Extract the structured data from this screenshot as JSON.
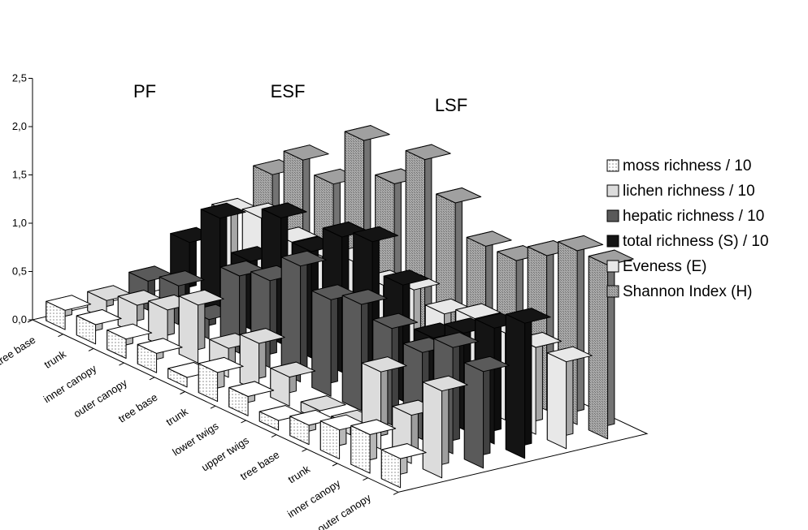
{
  "chart_data": {
    "type": "bar",
    "subtype": "3d-grouped-bar",
    "title": "",
    "xlabel": "",
    "ylabel": "",
    "ylim": [
      0,
      2.5
    ],
    "ytick_labels": [
      "0,0",
      "0,5",
      "1,0",
      "1,5",
      "2,0",
      "2,5"
    ],
    "yticks": [
      0,
      0.5,
      1.0,
      1.5,
      2.0,
      2.5
    ],
    "grid": false,
    "legend_position": "right",
    "groups": [
      {
        "label": "PF",
        "categories": [
          "tree base",
          "trunk",
          "inner canopy",
          "outer canopy"
        ]
      },
      {
        "label": "ESF",
        "categories": [
          "tree base",
          "trunk",
          "lower twigs",
          "upper twigs"
        ]
      },
      {
        "label": "LSF",
        "categories": [
          "tree base",
          "trunk",
          "inner canopy",
          "outer canopy"
        ]
      }
    ],
    "categories": [
      "tree base",
      "trunk",
      "inner canopy",
      "outer canopy",
      "tree base",
      "trunk",
      "lower twigs",
      "upper twigs",
      "tree base",
      "trunk",
      "inner canopy",
      "outer canopy"
    ],
    "series": [
      {
        "name": "moss richness / 10",
        "color": "#ffffff",
        "pattern": "dots",
        "values": [
          0.2,
          0.2,
          0.2,
          0.2,
          0.1,
          0.3,
          0.2,
          0.1,
          0.2,
          0.3,
          0.4,
          0.3
        ]
      },
      {
        "name": "lichen richness / 10",
        "color": "#dcdcdc",
        "pattern": "none",
        "values": [
          0.2,
          0.3,
          0.4,
          0.6,
          0.3,
          0.5,
          0.3,
          0.1,
          0.1,
          0.8,
          0.5,
          0.9
        ]
      },
      {
        "name": "hepatic richness / 10",
        "color": "#5a5a5a",
        "pattern": "none",
        "values": [
          0.3,
          0.4,
          0.2,
          0.8,
          0.9,
          1.2,
          1.0,
          1.1,
          1.0,
          0.9,
          1.1,
          1.0
        ]
      },
      {
        "name": "total richness (S) / 10",
        "color": "#141414",
        "pattern": "none",
        "values": [
          0.6,
          1.0,
          0.7,
          1.3,
          1.1,
          1.4,
          1.5,
          1.2,
          0.8,
          1.0,
          1.2,
          1.4
        ]
      },
      {
        "name": "Eveness (E)",
        "color": "#e8e8e8",
        "pattern": "none",
        "values": [
          0.8,
          0.9,
          0.8,
          0.8,
          0.9,
          0.8,
          0.9,
          0.8,
          0.9,
          0.9,
          0.9,
          0.9
        ]
      },
      {
        "name": "Shannon Index (H)",
        "color": "#a0a0a0",
        "pattern": "hatch",
        "values": [
          1.1,
          1.4,
          1.3,
          1.9,
          1.6,
          2.0,
          1.7,
          1.4,
          1.4,
          1.6,
          1.8,
          1.8
        ]
      }
    ]
  }
}
